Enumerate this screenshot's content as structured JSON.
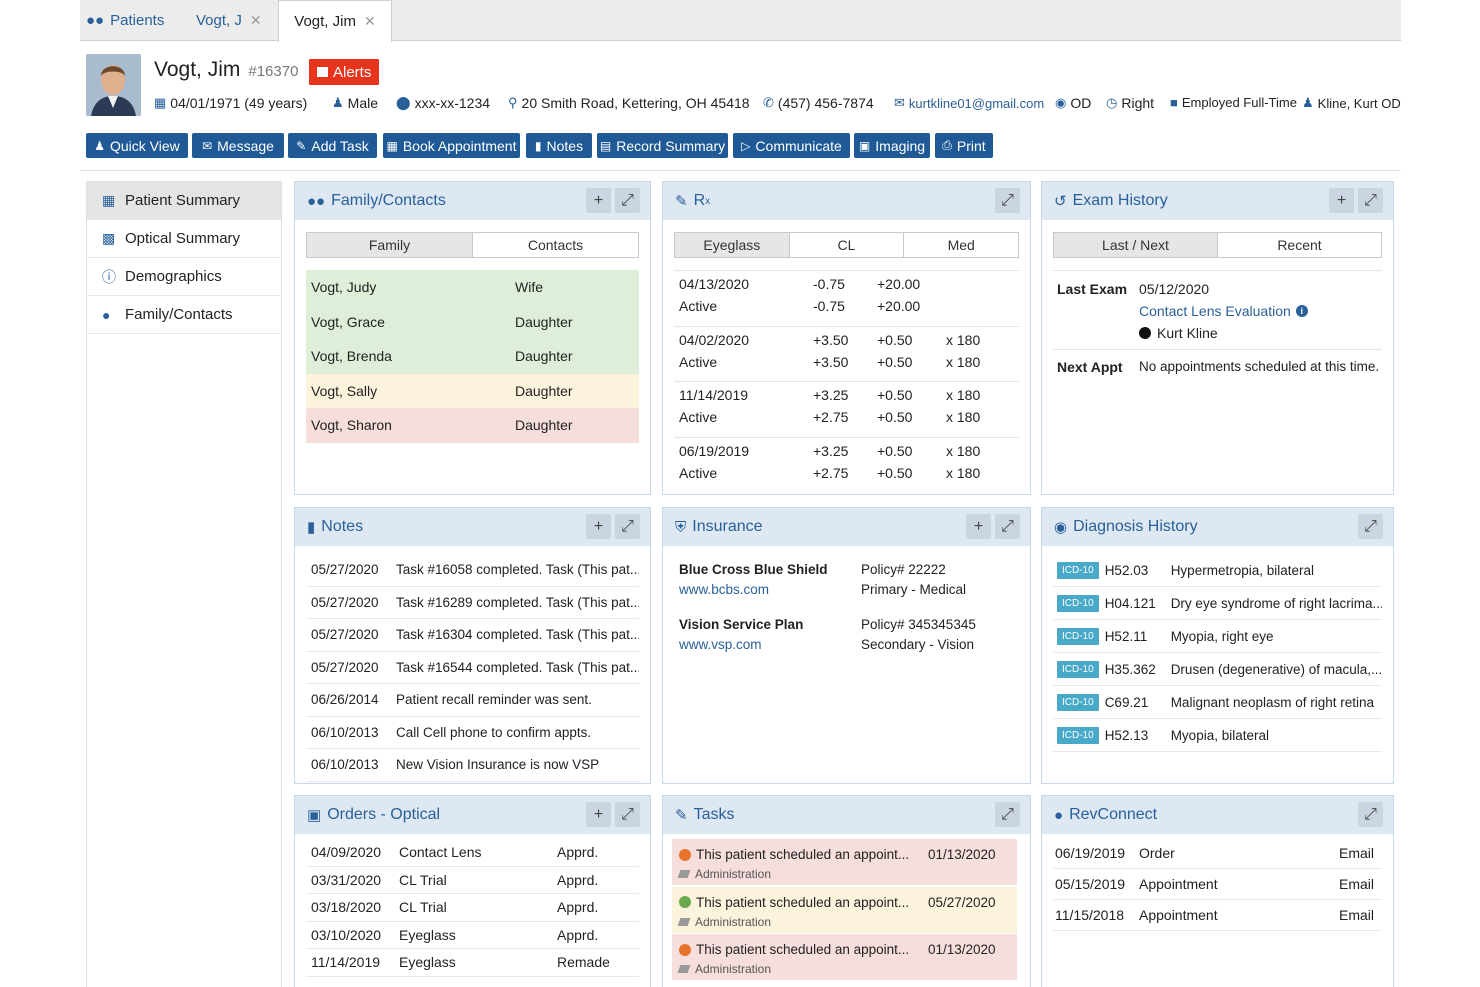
{
  "tabs": [
    {
      "label": "Patients"
    },
    {
      "label": "Vogt, J"
    },
    {
      "label": "Vogt, Jim"
    }
  ],
  "patient": {
    "name": "Vogt, Jim",
    "number": "#16370",
    "alerts_label": "Alerts",
    "dob": "04/01/1971 (49 years)",
    "sex": "Male",
    "ssn": "xxx-xx-1234",
    "address": "20 Smith Road, Kettering, OH 45418",
    "phone": "(457) 456-7874",
    "email": "kurtkline01@gmail.com",
    "eye": "OD",
    "hand": "Right",
    "employment": "Employed Full-Time",
    "provider": "Kline, Kurt OD"
  },
  "toolbar": {
    "quick_view": "Quick View",
    "message": "Message",
    "add_task": "Add Task",
    "book_appointment": "Book Appointment",
    "notes": "Notes",
    "record_summary": "Record Summary",
    "communicate": "Communicate",
    "imaging": "Imaging",
    "print": "Print"
  },
  "sidebar": {
    "items": [
      {
        "label": "Patient Summary"
      },
      {
        "label": "Optical Summary"
      },
      {
        "label": "Demographics"
      },
      {
        "label": "Family/Contacts"
      }
    ]
  },
  "family": {
    "title": "Family/Contacts",
    "tabs": [
      "Family",
      "Contacts"
    ],
    "rows": [
      {
        "name": "Vogt, Judy",
        "relation": "Wife",
        "color": "#dfeed9"
      },
      {
        "name": "Vogt, Grace",
        "relation": "Daughter",
        "color": "#dfeed9"
      },
      {
        "name": "Vogt, Brenda",
        "relation": "Daughter",
        "color": "#dfeed9"
      },
      {
        "name": "Vogt, Sally",
        "relation": "Daughter",
        "color": "#fbf3dc"
      },
      {
        "name": "Vogt, Sharon",
        "relation": "Daughter",
        "color": "#f6dedd"
      }
    ]
  },
  "rx": {
    "title": "R",
    "title_sub": "x",
    "tabs": [
      "Eyeglass",
      "CL",
      "Med"
    ],
    "rows": [
      {
        "date": "04/13/2020",
        "status": "Active",
        "s1": "-0.75",
        "c1": "+20.00",
        "a1": "",
        "s2": "-0.75",
        "c2": "+20.00",
        "a2": ""
      },
      {
        "date": "04/02/2020",
        "status": "Active",
        "s1": "+3.50",
        "c1": "+0.50",
        "a1": "x 180",
        "s2": "+3.50",
        "c2": "+0.50",
        "a2": "x 180"
      },
      {
        "date": "11/14/2019",
        "status": "Active",
        "s1": "+3.25",
        "c1": "+0.50",
        "a1": "x 180",
        "s2": "+2.75",
        "c2": "+0.50",
        "a2": "x 180"
      },
      {
        "date": "06/19/2019",
        "status": "Active",
        "s1": "+3.25",
        "c1": "+0.50",
        "a1": "x 180",
        "s2": "+2.75",
        "c2": "+0.50",
        "a2": "x 180"
      }
    ]
  },
  "exam": {
    "title": "Exam History",
    "tabs": [
      "Last / Next",
      "Recent"
    ],
    "last_label": "Last Exam",
    "last_date": "05/12/2020",
    "last_type": "Contact Lens Evaluation",
    "last_provider": "Kurt Kline",
    "next_label": "Next Appt",
    "next_value": "No appointments scheduled at this time."
  },
  "notes": {
    "title": "Notes",
    "rows": [
      {
        "date": "05/27/2020",
        "text": "Task #16058 completed. Task (This pat..."
      },
      {
        "date": "05/27/2020",
        "text": "Task #16289 completed. Task (This pat..."
      },
      {
        "date": "05/27/2020",
        "text": "Task #16304 completed. Task (This pat..."
      },
      {
        "date": "05/27/2020",
        "text": "Task #16544 completed. Task (This pat..."
      },
      {
        "date": "06/26/2014",
        "text": "Patient recall reminder was sent."
      },
      {
        "date": "06/10/2013",
        "text": "Call Cell phone to confirm appts."
      },
      {
        "date": "06/10/2013",
        "text": "New Vision Insurance is now VSP"
      }
    ]
  },
  "insurance": {
    "title": "Insurance",
    "rows": [
      {
        "name": "Blue Cross Blue Shield",
        "url": "www.bcbs.com",
        "policy": "Policy# 22222",
        "type": "Primary - Medical"
      },
      {
        "name": "Vision Service Plan",
        "url": "www.vsp.com",
        "policy": "Policy# 345345345",
        "type": "Secondary - Vision"
      }
    ]
  },
  "diagnosis": {
    "title": "Diagnosis History",
    "badge": "ICD-10",
    "rows": [
      {
        "code": "H52.03",
        "desc": "Hypermetropia, bilateral"
      },
      {
        "code": "H04.121",
        "desc": "Dry eye syndrome of right lacrima..."
      },
      {
        "code": "H52.11",
        "desc": "Myopia, right eye"
      },
      {
        "code": "H35.362",
        "desc": "Drusen (degenerative) of macula,..."
      },
      {
        "code": "C69.21",
        "desc": "Malignant neoplasm of right retina"
      },
      {
        "code": "H52.13",
        "desc": "Myopia, bilateral"
      }
    ]
  },
  "orders": {
    "title": "Orders - Optical",
    "rows": [
      {
        "date": "04/09/2020",
        "item": "Contact Lens",
        "status": "Apprd."
      },
      {
        "date": "03/31/2020",
        "item": "CL Trial",
        "status": "Apprd."
      },
      {
        "date": "03/18/2020",
        "item": "CL Trial",
        "status": "Apprd."
      },
      {
        "date": "03/10/2020",
        "item": "Eyeglass",
        "status": "Apprd."
      },
      {
        "date": "11/14/2019",
        "item": "Eyeglass",
        "status": "Remade"
      }
    ]
  },
  "tasks": {
    "title": "Tasks",
    "rows": [
      {
        "text": "This patient scheduled an appoint...",
        "date": "01/13/2020",
        "category": "Administration",
        "bg": "#f6dedd",
        "dot": "#e8742c"
      },
      {
        "text": "This patient scheduled an appoint...",
        "date": "05/27/2020",
        "category": "Administration",
        "bg": "#fbf3dc",
        "dot": "#6aa84f"
      },
      {
        "text": "This patient scheduled an appoint...",
        "date": "01/13/2020",
        "category": "Administration",
        "bg": "#f6dedd",
        "dot": "#e8742c"
      }
    ]
  },
  "revconnect": {
    "title": "RevConnect",
    "rows": [
      {
        "date": "06/19/2019",
        "type": "Order",
        "channel": "Email"
      },
      {
        "date": "05/15/2019",
        "type": "Appointment",
        "channel": "Email"
      },
      {
        "date": "11/15/2018",
        "type": "Appointment",
        "channel": "Email"
      }
    ]
  }
}
